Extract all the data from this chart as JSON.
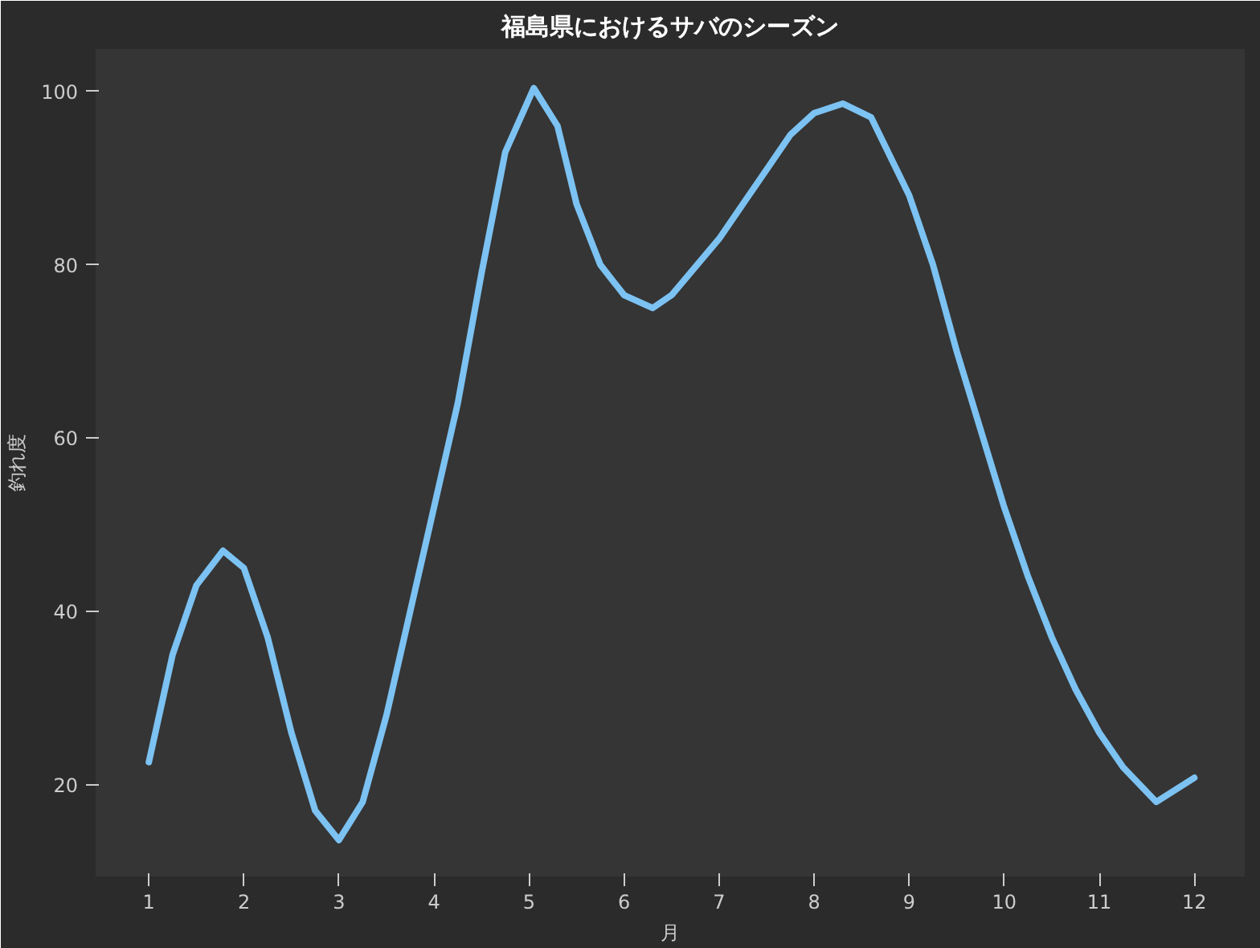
{
  "chart_data": {
    "type": "line",
    "title": "福島県におけるサバのシーズン",
    "xlabel": "月",
    "ylabel": "釣れ度",
    "series": [
      {
        "color": "#7cc2f2",
        "x": [
          1,
          1.25,
          1.5,
          1.78,
          2,
          2.25,
          2.5,
          2.75,
          3,
          3.25,
          3.5,
          3.75,
          4,
          4.25,
          4.5,
          4.75,
          5.05,
          5.3,
          5.5,
          5.75,
          6,
          6.3,
          6.5,
          7,
          7.5,
          7.75,
          8,
          8.3,
          8.6,
          9,
          9.25,
          9.5,
          9.75,
          10,
          10.25,
          10.5,
          10.75,
          11,
          11.25,
          11.6,
          12
        ],
        "values": [
          22.6,
          35,
          43,
          47,
          45,
          37,
          26,
          17,
          13.6,
          18,
          28,
          40,
          52,
          64,
          79,
          93,
          100.4,
          96,
          87,
          80,
          76.5,
          75,
          76.5,
          83,
          91,
          95,
          97.5,
          98.6,
          97,
          88,
          80,
          70,
          61,
          52,
          44,
          37,
          31,
          26,
          22,
          18,
          20.8
        ]
      }
    ],
    "xlim": [
      0.44,
      12.53
    ],
    "ylim": [
      9.4,
      104.9
    ],
    "xticks": [
      1,
      2,
      3,
      4,
      5,
      6,
      7,
      8,
      9,
      10,
      11,
      12
    ],
    "yticks": [
      20,
      40,
      60,
      80,
      100
    ],
    "grid": false,
    "line_style": "solid"
  }
}
